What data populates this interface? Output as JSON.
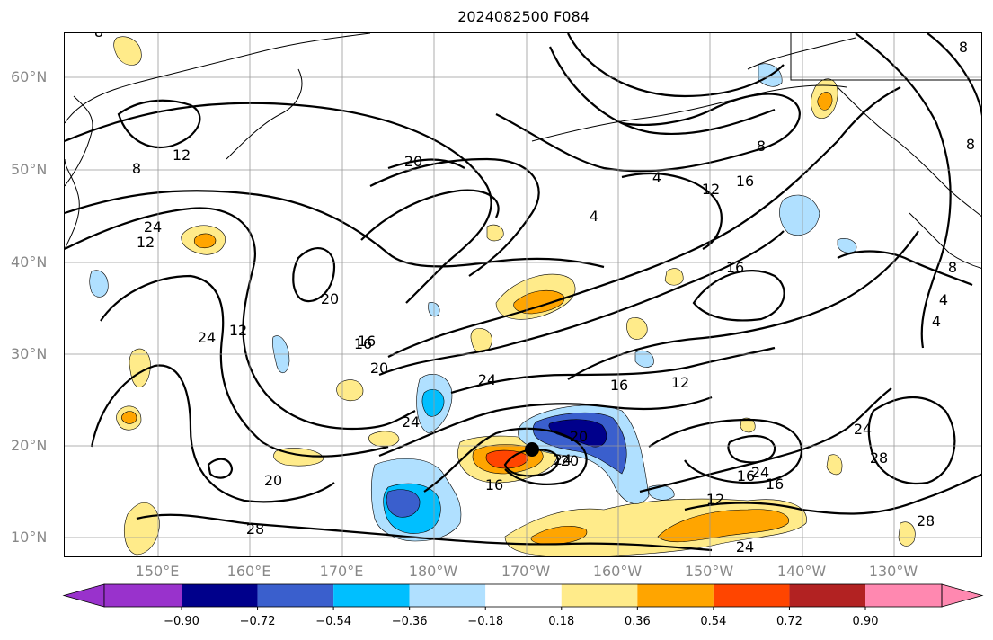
{
  "title": "2024082500 F084",
  "lat_labels": [
    "60°N",
    "50°N",
    "40°N",
    "30°N",
    "20°N",
    "10°N"
  ],
  "lon_labels": [
    "150°E",
    "160°E",
    "170°E",
    "180°W",
    "170°W",
    "160°W",
    "150°W",
    "140°W",
    "130°W"
  ],
  "colorbar": {
    "ticks": [
      "−0.90",
      "−0.72",
      "−0.54",
      "−0.36",
      "−0.18",
      "0.18",
      "0.36",
      "0.54",
      "0.72",
      "0.90"
    ],
    "colors": [
      "#9932cc",
      "#00008b",
      "#3a5fcd",
      "#00bfff",
      "#b0e0ff",
      "#ffffff",
      "#ffeb8a",
      "#ffa500",
      "#ff4500",
      "#b22222",
      "#ff88b0"
    ]
  },
  "contour_labels": [
    "8",
    "12",
    "8",
    "20",
    "24",
    "20",
    "12",
    "24",
    "12",
    "20",
    "16",
    "16",
    "20",
    "24",
    "28",
    "24",
    "20",
    "16",
    "12",
    "16",
    "8",
    "4",
    "4",
    "12",
    "16",
    "16",
    "24",
    "24",
    "16",
    "28",
    "12",
    "24",
    "28",
    "8",
    "4",
    "4",
    "8",
    "8",
    "20",
    "16",
    "24"
  ]
}
